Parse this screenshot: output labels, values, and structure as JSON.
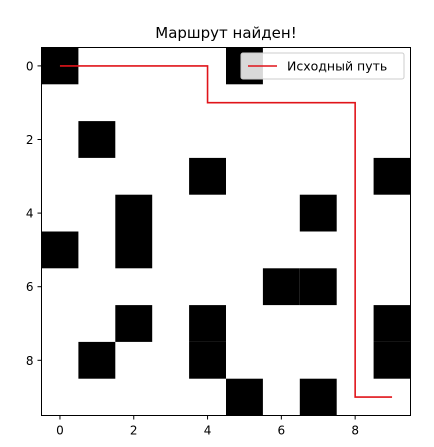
{
  "chart_data": {
    "type": "heatmap",
    "title": "Маршрут найден!",
    "xlabel": "",
    "ylabel": "",
    "x_ticks": [
      0,
      2,
      4,
      6,
      8
    ],
    "y_ticks": [
      0,
      2,
      4,
      6,
      8
    ],
    "xlim": [
      -0.5,
      9.5
    ],
    "ylim": [
      9.5,
      -0.5
    ],
    "grid": false,
    "colors": {
      "obstacle": "#000000",
      "free": "#ffffff",
      "path": "#e0141a"
    },
    "grid_values": [
      [
        1,
        0,
        0,
        0,
        0,
        1,
        0,
        0,
        0,
        0
      ],
      [
        0,
        0,
        0,
        0,
        0,
        0,
        0,
        0,
        0,
        0
      ],
      [
        0,
        1,
        0,
        0,
        0,
        0,
        0,
        0,
        0,
        0
      ],
      [
        0,
        0,
        0,
        0,
        1,
        0,
        0,
        0,
        0,
        1
      ],
      [
        0,
        0,
        1,
        0,
        0,
        0,
        0,
        1,
        0,
        0
      ],
      [
        1,
        0,
        1,
        0,
        0,
        0,
        0,
        0,
        0,
        0
      ],
      [
        0,
        0,
        0,
        0,
        0,
        0,
        1,
        1,
        0,
        0
      ],
      [
        0,
        0,
        1,
        0,
        1,
        0,
        0,
        0,
        0,
        1
      ],
      [
        0,
        1,
        0,
        0,
        1,
        0,
        0,
        0,
        0,
        1
      ],
      [
        0,
        0,
        0,
        0,
        0,
        1,
        0,
        1,
        0,
        0
      ]
    ],
    "series": [
      {
        "name": "Исходный путь",
        "x": [
          0,
          4,
          4,
          8,
          8,
          9
        ],
        "y": [
          0,
          0,
          1,
          1,
          9,
          9
        ]
      }
    ],
    "legend": {
      "placement": "top-right",
      "entries": [
        "Исходный путь"
      ]
    }
  }
}
